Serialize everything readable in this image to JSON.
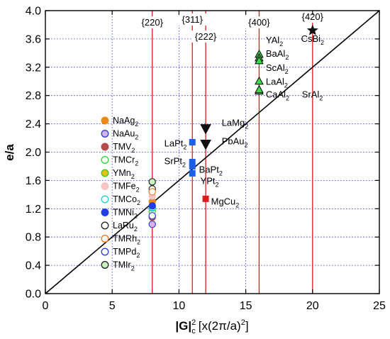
{
  "chart_data": {
    "type": "scatter",
    "xlabel": "|G|",
    "xlabel_sup": "2",
    "xlabel_sub": "c",
    "xlabel_units": "[x(2π/a)",
    "xlabel_units_sup": "2",
    "xlabel_units_close": "]",
    "ylabel": "e/a",
    "xlim": [
      0,
      25
    ],
    "ylim": [
      0.0,
      4.0
    ],
    "xticks": [
      "0",
      "5",
      "10",
      "15",
      "20",
      "25"
    ],
    "yticks": [
      "0.0",
      "0.4",
      "0.8",
      "1.2",
      "1.6",
      "2.0",
      "2.4",
      "2.8",
      "3.2",
      "3.6",
      "4.0"
    ],
    "grid": "dotted",
    "diagonal_line": {
      "x": [
        0,
        25
      ],
      "y": [
        0.0,
        4.0
      ]
    },
    "vertical_lines": [
      {
        "x": 8,
        "label": "{220}"
      },
      {
        "x": 11,
        "label": "{311}"
      },
      {
        "x": 12,
        "label": "{222}"
      },
      {
        "x": 16,
        "label": "{400}"
      },
      {
        "x": 20,
        "label": "{420}"
      }
    ],
    "series": [
      {
        "name": "NaAg2",
        "marker": "circle",
        "fill": "#e8891a",
        "stroke": "#e8891a",
        "points": [
          [
            8,
            1.3
          ]
        ]
      },
      {
        "name": "NaAu2",
        "marker": "circle",
        "fill": "#d7b3e8",
        "stroke": "#2a3fd1",
        "points": [
          [
            8,
            0.98
          ]
        ]
      },
      {
        "name": "TMV2",
        "marker": "circle",
        "fill": "#b84a4a",
        "stroke": "#b84a4a",
        "points": [
          [
            8,
            1.08
          ]
        ]
      },
      {
        "name": "TMCr2",
        "marker": "circle",
        "fill": "#ffffff",
        "stroke": "#2ad43a",
        "points": [
          [
            8,
            1.16
          ]
        ]
      },
      {
        "name": "YMn2",
        "marker": "circle",
        "fill": "#e8c20c",
        "stroke": "#3cc43c",
        "points": [
          [
            8,
            1.21
          ]
        ]
      },
      {
        "name": "TMFe2",
        "marker": "circle",
        "fill": "#f8c4c4",
        "stroke": "#f8c4c4",
        "points": [
          [
            8,
            1.38
          ]
        ]
      },
      {
        "name": "TMCo2",
        "marker": "circle",
        "fill": "#ffffff",
        "stroke": "#18d6d6",
        "points": [
          [
            8,
            1.22
          ]
        ]
      },
      {
        "name": "TMNi2",
        "marker": "circle",
        "fill": "#1f3fe6",
        "stroke": "#1f3fe6",
        "points": [
          [
            8,
            1.24
          ]
        ]
      },
      {
        "name": "LaRu2",
        "marker": "circle",
        "fill": "#ffffff",
        "stroke": "#222222",
        "points": [
          [
            8,
            1.48
          ]
        ]
      },
      {
        "name": "TMRh2",
        "marker": "circle",
        "fill": "#ffffff",
        "stroke": "#ef7a22",
        "points": [
          [
            8,
            1.44
          ]
        ]
      },
      {
        "name": "TMPd2",
        "marker": "circle",
        "fill": "#ffffff",
        "stroke": "#2a3fd1",
        "points": [
          [
            8,
            1.1
          ]
        ]
      },
      {
        "name": "TMIr2",
        "marker": "circle",
        "fill": "#c8f2c0",
        "stroke": "#222222",
        "points": [
          [
            8,
            1.58
          ]
        ]
      },
      {
        "name": "CsBi2",
        "marker": "star",
        "fill": "#111111",
        "points": [
          [
            20,
            3.72
          ]
        ]
      },
      {
        "name": "YAl2",
        "marker": "triangle-up",
        "fill": "#3fdc4a",
        "points": [
          [
            16,
            3.38
          ]
        ]
      },
      {
        "name": "BaAl2",
        "marker": "triangle-up",
        "fill": "#3fdc4a",
        "points": [
          [
            16,
            3.33
          ]
        ]
      },
      {
        "name": "ScAl2",
        "marker": "triangle-up",
        "fill": "#3fdc4a",
        "points": [
          [
            16,
            3.29
          ]
        ]
      },
      {
        "name": "LaAl2",
        "marker": "triangle-up",
        "fill": "#3fdc4a",
        "points": [
          [
            16,
            3.0
          ]
        ]
      },
      {
        "name": "CaAl2",
        "marker": "triangle-up",
        "fill": "#3fdc4a",
        "points": [
          [
            16,
            2.86
          ]
        ]
      },
      {
        "name": "SrAl2",
        "marker": "triangle-up",
        "fill": "#3fdc4a",
        "points": [
          [
            16,
            2.88
          ]
        ]
      },
      {
        "name": "LaMg2",
        "marker": "triangle-down",
        "fill": "#111111",
        "points": [
          [
            12,
            2.33
          ]
        ]
      },
      {
        "name": "PbAu2",
        "marker": "triangle-down",
        "fill": "#111111",
        "points": [
          [
            12,
            2.11
          ]
        ]
      },
      {
        "name": "LaPt2",
        "marker": "square",
        "fill": "#1f5fe6",
        "points": [
          [
            11,
            2.14
          ]
        ]
      },
      {
        "name": "SrPt2",
        "marker": "square",
        "fill": "#1f5fe6",
        "points": [
          [
            11,
            1.86
          ]
        ]
      },
      {
        "name": "BaPt2",
        "marker": "square",
        "fill": "#1f5fe6",
        "points": [
          [
            11,
            1.8
          ]
        ]
      },
      {
        "name": "YPt2",
        "marker": "square",
        "fill": "#1f5fe6",
        "points": [
          [
            11,
            1.7
          ]
        ]
      },
      {
        "name": "MgCu2",
        "marker": "square",
        "fill": "#e01a1a",
        "points": [
          [
            12,
            1.34
          ]
        ]
      }
    ],
    "annotations": [
      {
        "base": "CsBi",
        "sub": "2",
        "x": 20,
        "y": 3.56
      },
      {
        "base": "YAl",
        "sub": "2",
        "x": 16.5,
        "y": 3.54
      },
      {
        "base": "BaAl",
        "sub": "2",
        "x": 16.5,
        "y": 3.35
      },
      {
        "base": "ScAl",
        "sub": "2",
        "x": 16.5,
        "y": 3.15
      },
      {
        "base": "LaAl",
        "sub": "2",
        "x": 16.5,
        "y": 2.95
      },
      {
        "base": "CaAl",
        "sub": "2",
        "x": 16.5,
        "y": 2.77
      },
      {
        "base": "SrAl",
        "sub": "2",
        "x": 19.2,
        "y": 2.77
      },
      {
        "base": "LaMg",
        "sub": "2",
        "x": 13.2,
        "y": 2.37
      },
      {
        "base": "PbAu",
        "sub": "2",
        "x": 13.2,
        "y": 2.11
      },
      {
        "base": "LaPt",
        "sub": "2",
        "x": 8.9,
        "y": 2.08
      },
      {
        "base": "SrPt",
        "sub": "2",
        "x": 8.9,
        "y": 1.83
      },
      {
        "base": "BaPt",
        "sub": "2",
        "x": 11.5,
        "y": 1.71
      },
      {
        "base": "YPt",
        "sub": "2",
        "x": 11.6,
        "y": 1.55
      },
      {
        "base": "MgCu",
        "sub": "2",
        "x": 12.4,
        "y": 1.26
      }
    ],
    "legend": {
      "position": "left-middle",
      "items": [
        {
          "base": "NaAg",
          "sub": "2",
          "fill": "#e8891a",
          "stroke": "#e8891a"
        },
        {
          "base": "NaAu",
          "sub": "2",
          "fill": "#d7b3e8",
          "stroke": "#2a3fd1"
        },
        {
          "base": "TMV",
          "sub": "2",
          "fill": "#b84a4a",
          "stroke": "#b84a4a"
        },
        {
          "base": "TMCr",
          "sub": "2",
          "fill": "#ffffff",
          "stroke": "#2ad43a"
        },
        {
          "base": "YMn",
          "sub": "2",
          "fill": "#e8c20c",
          "stroke": "#3cc43c"
        },
        {
          "base": "TMFe",
          "sub": "2",
          "fill": "#f8c4c4",
          "stroke": "#f8c4c4"
        },
        {
          "base": "TMCo",
          "sub": "2",
          "fill": "#ffffff",
          "stroke": "#18d6d6"
        },
        {
          "base": "TMNi",
          "sub": "2",
          "fill": "#1f3fe6",
          "stroke": "#1f3fe6"
        },
        {
          "base": "LaRu",
          "sub": "2",
          "fill": "#ffffff",
          "stroke": "#222222"
        },
        {
          "base": "TMRh",
          "sub": "2",
          "fill": "#ffffff",
          "stroke": "#ef7a22"
        },
        {
          "base": "TMPd",
          "sub": "2",
          "fill": "#ffffff",
          "stroke": "#2a3fd1"
        },
        {
          "base": "TMIr",
          "sub": "2",
          "fill": "#c8f2c0",
          "stroke": "#222222"
        }
      ]
    },
    "colors": {
      "grid": "#2b2bd6",
      "vertical_lines": "#e01a1a",
      "diagonal": "#000000"
    }
  }
}
